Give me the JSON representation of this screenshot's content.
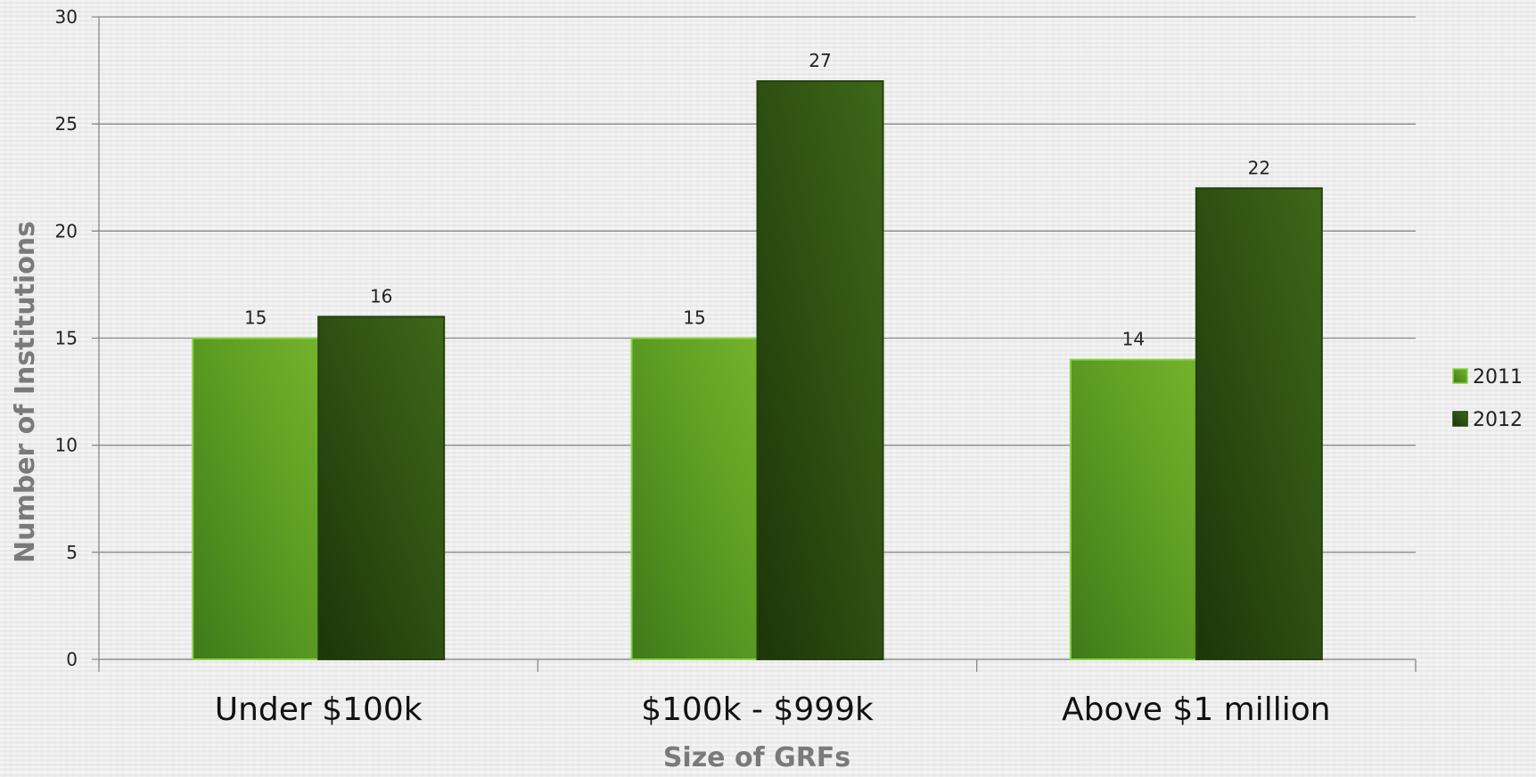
{
  "chart_data": {
    "type": "bar",
    "title": "",
    "xlabel": "Size of GRFs",
    "ylabel": "Number of Institutions",
    "categories": [
      "Under $100k",
      "$100k - $999k",
      "Above $1 million"
    ],
    "series": [
      {
        "name": "2011",
        "values": [
          15,
          15,
          14
        ],
        "color": "#6aab2a"
      },
      {
        "name": "2012",
        "values": [
          16,
          27,
          22
        ],
        "color": "#2f5215"
      }
    ],
    "ylim": [
      0,
      30
    ],
    "yticks": [
      0,
      5,
      10,
      15,
      20,
      25,
      30
    ],
    "grid": true,
    "legend_position": "right"
  }
}
